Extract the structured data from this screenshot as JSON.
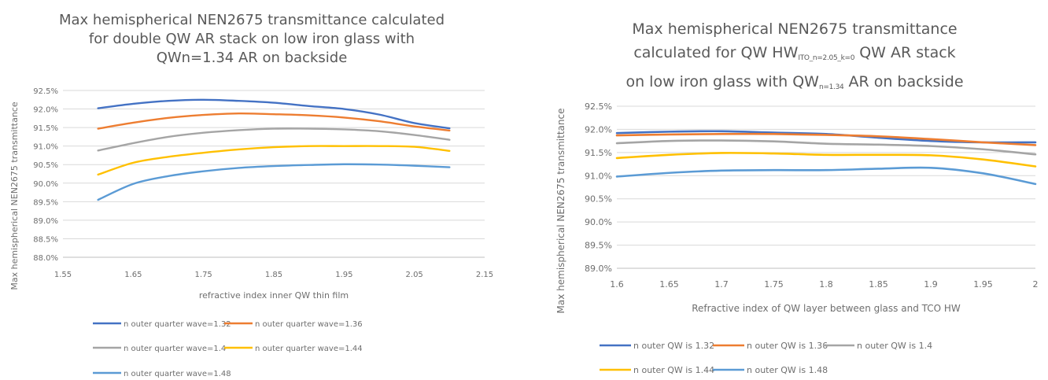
{
  "chart_data": [
    {
      "type": "line",
      "title_lines": [
        "Max hemispherical NEN2675 transmittance calculated",
        "for double QW AR stack on low iron glass with",
        "QWn=1.34 AR on backside"
      ],
      "xlabel": "refractive index inner QW thin film",
      "ylabel": "Max hemispherical NEN2675 transmittance",
      "xlim": [
        1.55,
        2.15
      ],
      "ylim": [
        88.0,
        92.5
      ],
      "x_ticks": [
        "1.55",
        "1.65",
        "1.75",
        "1.85",
        "1.95",
        "2.05",
        "2.15"
      ],
      "y_ticks": [
        "88.0%",
        "88.5%",
        "89.0%",
        "89.5%",
        "90.0%",
        "90.5%",
        "91.0%",
        "91.5%",
        "92.0%",
        "92.5%"
      ],
      "grid": "horizontal",
      "legend_position": "bottom",
      "x": [
        1.6,
        1.65,
        1.7,
        1.75,
        1.8,
        1.85,
        1.9,
        1.95,
        2.0,
        2.05,
        2.1
      ],
      "series": [
        {
          "name": "n outer quarter wave=1.32",
          "color": "#4472c4",
          "values": [
            92.02,
            92.14,
            92.22,
            92.25,
            92.22,
            92.17,
            92.08,
            92.0,
            91.85,
            91.62,
            91.48
          ]
        },
        {
          "name": "n outer quarter wave=1.36",
          "color": "#ed7d31",
          "values": [
            91.47,
            91.63,
            91.76,
            91.84,
            91.88,
            91.86,
            91.83,
            91.77,
            91.67,
            91.53,
            91.42
          ]
        },
        {
          "name": "n outer quarter wave=1.4",
          "color": "#a5a5a5",
          "values": [
            90.88,
            91.08,
            91.25,
            91.36,
            91.43,
            91.47,
            91.47,
            91.45,
            91.4,
            91.3,
            91.17
          ]
        },
        {
          "name": "n outer quarter wave=1.44",
          "color": "#ffc000",
          "values": [
            90.23,
            90.55,
            90.71,
            90.82,
            90.91,
            90.97,
            91.0,
            91.0,
            91.0,
            90.98,
            90.87
          ]
        },
        {
          "name": "n outer quarter wave=1.48",
          "color": "#5b9bd5",
          "values": [
            89.55,
            89.98,
            90.19,
            90.32,
            90.41,
            90.46,
            90.49,
            90.51,
            90.5,
            90.47,
            90.43
          ]
        }
      ]
    },
    {
      "type": "line",
      "title_lines": [
        [
          "Max hemispherical NEN2675 transmittance"
        ],
        [
          "calculated for QW HW",
          {
            "sub": "ITO_n=2.05_k=0"
          },
          " QW AR stack"
        ],
        [
          "on low iron glass with QW",
          {
            "sub": "n=1.34"
          },
          " AR on backside"
        ]
      ],
      "xlabel": "Refractive index of QW layer between glass and TCO HW",
      "ylabel": "Max hemispherical NEN2675 transmittance",
      "xlim": [
        1.6,
        2.0
      ],
      "ylim": [
        89.0,
        92.5
      ],
      "x_ticks": [
        "1.6",
        "1.65",
        "1.7",
        "1.75",
        "1.8",
        "1.85",
        "1.9",
        "1.95",
        "2"
      ],
      "y_ticks": [
        "89.0%",
        "89.5%",
        "90.0%",
        "90.5%",
        "91.0%",
        "91.5%",
        "92.0%",
        "92.5%"
      ],
      "grid": "horizontal",
      "legend_position": "bottom",
      "x": [
        1.6,
        1.65,
        1.7,
        1.75,
        1.8,
        1.85,
        1.9,
        1.95,
        2.0
      ],
      "series": [
        {
          "name": "n outer QW is 1.32",
          "color": "#4472c4",
          "values": [
            91.92,
            91.95,
            91.96,
            91.93,
            91.9,
            91.82,
            91.75,
            91.72,
            91.72
          ]
        },
        {
          "name": "n outer QW is 1.36",
          "color": "#ed7d31",
          "values": [
            91.87,
            91.89,
            91.9,
            91.9,
            91.88,
            91.85,
            91.79,
            91.72,
            91.66
          ]
        },
        {
          "name": "n outer QW is 1.4",
          "color": "#a5a5a5",
          "values": [
            91.7,
            91.75,
            91.76,
            91.74,
            91.69,
            91.67,
            91.64,
            91.57,
            91.46
          ]
        },
        {
          "name": "n outer QW is 1.44",
          "color": "#ffc000",
          "values": [
            91.38,
            91.45,
            91.49,
            91.48,
            91.45,
            91.45,
            91.44,
            91.35,
            91.2
          ]
        },
        {
          "name": "n outer QW is 1.48",
          "color": "#5b9bd5",
          "values": [
            90.98,
            91.06,
            91.11,
            91.12,
            91.12,
            91.15,
            91.17,
            91.05,
            90.82
          ]
        }
      ]
    }
  ]
}
